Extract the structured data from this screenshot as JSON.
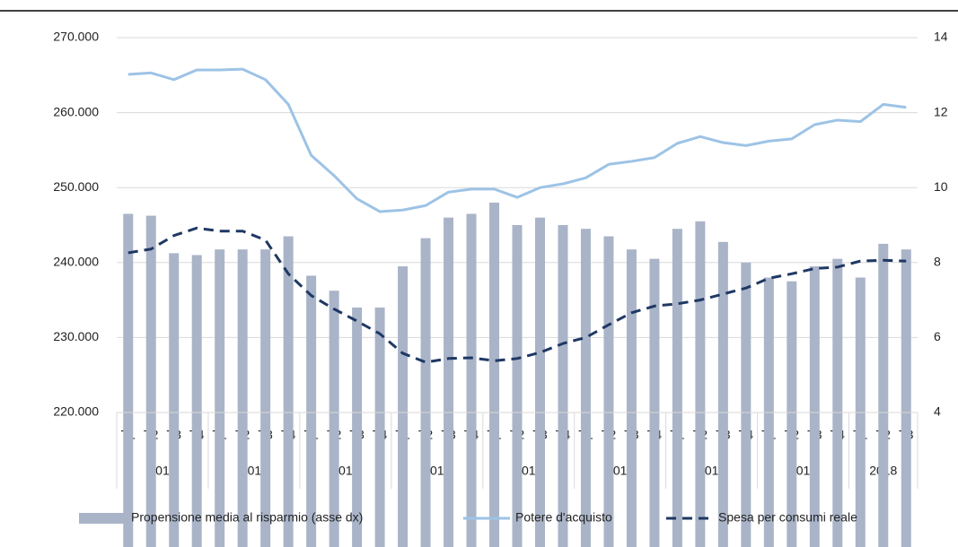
{
  "chart_data": {
    "type": "bar-line",
    "groups": [
      {
        "label": "2010",
        "quarters": [
          "T1",
          "T2",
          "T3",
          "T4"
        ]
      },
      {
        "label": "2011",
        "quarters": [
          "T1",
          "T2",
          "T3",
          "T4"
        ]
      },
      {
        "label": "2012",
        "quarters": [
          "T1",
          "T2",
          "T3",
          "T4"
        ]
      },
      {
        "label": "2013",
        "quarters": [
          "T1",
          "T2",
          "T3",
          "T4"
        ]
      },
      {
        "label": "2014",
        "quarters": [
          "T1",
          "T2",
          "T3",
          "T4"
        ]
      },
      {
        "label": "2015",
        "quarters": [
          "T1",
          "T2",
          "T3",
          "T4"
        ]
      },
      {
        "label": "2016",
        "quarters": [
          "T1",
          "T2",
          "T3",
          "T4"
        ]
      },
      {
        "label": "2017",
        "quarters": [
          "T1",
          "T2",
          "T3",
          "T4"
        ]
      },
      {
        "label": "2018",
        "quarters": [
          "T1",
          "T2",
          "T3"
        ]
      }
    ],
    "series": [
      {
        "name": "Propensione media al risparmio (asse dx)",
        "type": "bar",
        "axis": "y2",
        "color": "#aab4c8",
        "values": [
          9.3,
          9.25,
          8.25,
          8.2,
          8.35,
          8.35,
          8.35,
          8.7,
          7.65,
          7.25,
          6.8,
          6.8,
          7.9,
          8.65,
          9.2,
          9.3,
          9.6,
          9.0,
          9.2,
          9.0,
          8.9,
          8.7,
          8.35,
          8.1,
          8.9,
          9.1,
          8.55,
          8.0,
          7.6,
          7.5,
          7.9,
          8.1,
          7.6,
          8.5,
          8.35
        ]
      },
      {
        "name": "Potere d'acquisto",
        "type": "line",
        "color": "#9dc3e6",
        "values": [
          265100,
          265300,
          264400,
          265700,
          265700,
          265800,
          264400,
          261100,
          254300,
          251600,
          248500,
          246800,
          247000,
          247600,
          249400,
          249800,
          249800,
          248700,
          250000,
          250500,
          251300,
          253100,
          253500,
          254000,
          255900,
          256800,
          256000,
          255600,
          256200,
          256500,
          258400,
          259000,
          258800,
          261100,
          260700
        ]
      },
      {
        "name": "Spesa per consumi reale",
        "type": "dashed-line",
        "color": "#1f3864",
        "values": [
          241300,
          241800,
          243600,
          244600,
          244200,
          244200,
          243000,
          238500,
          235600,
          233800,
          232200,
          230500,
          227900,
          226700,
          227200,
          227300,
          226900,
          227200,
          228000,
          229200,
          230000,
          231700,
          233300,
          234200,
          234500,
          235000,
          235800,
          236600,
          237900,
          238500,
          239200,
          239400,
          240200,
          240300,
          240200
        ]
      }
    ],
    "ylim": [
      220000,
      270000
    ],
    "yticks": [
      {
        "value": 220000,
        "label": "220.000"
      },
      {
        "value": 230000,
        "label": "230.000"
      },
      {
        "value": 240000,
        "label": "240.000"
      },
      {
        "value": 250000,
        "label": "250.000"
      },
      {
        "value": 260000,
        "label": "260.000"
      },
      {
        "value": 270000,
        "label": "270.000"
      }
    ],
    "y2lim": [
      4,
      14
    ],
    "y2ticks": [
      4,
      6,
      8,
      10,
      12,
      14
    ],
    "grid": true
  }
}
